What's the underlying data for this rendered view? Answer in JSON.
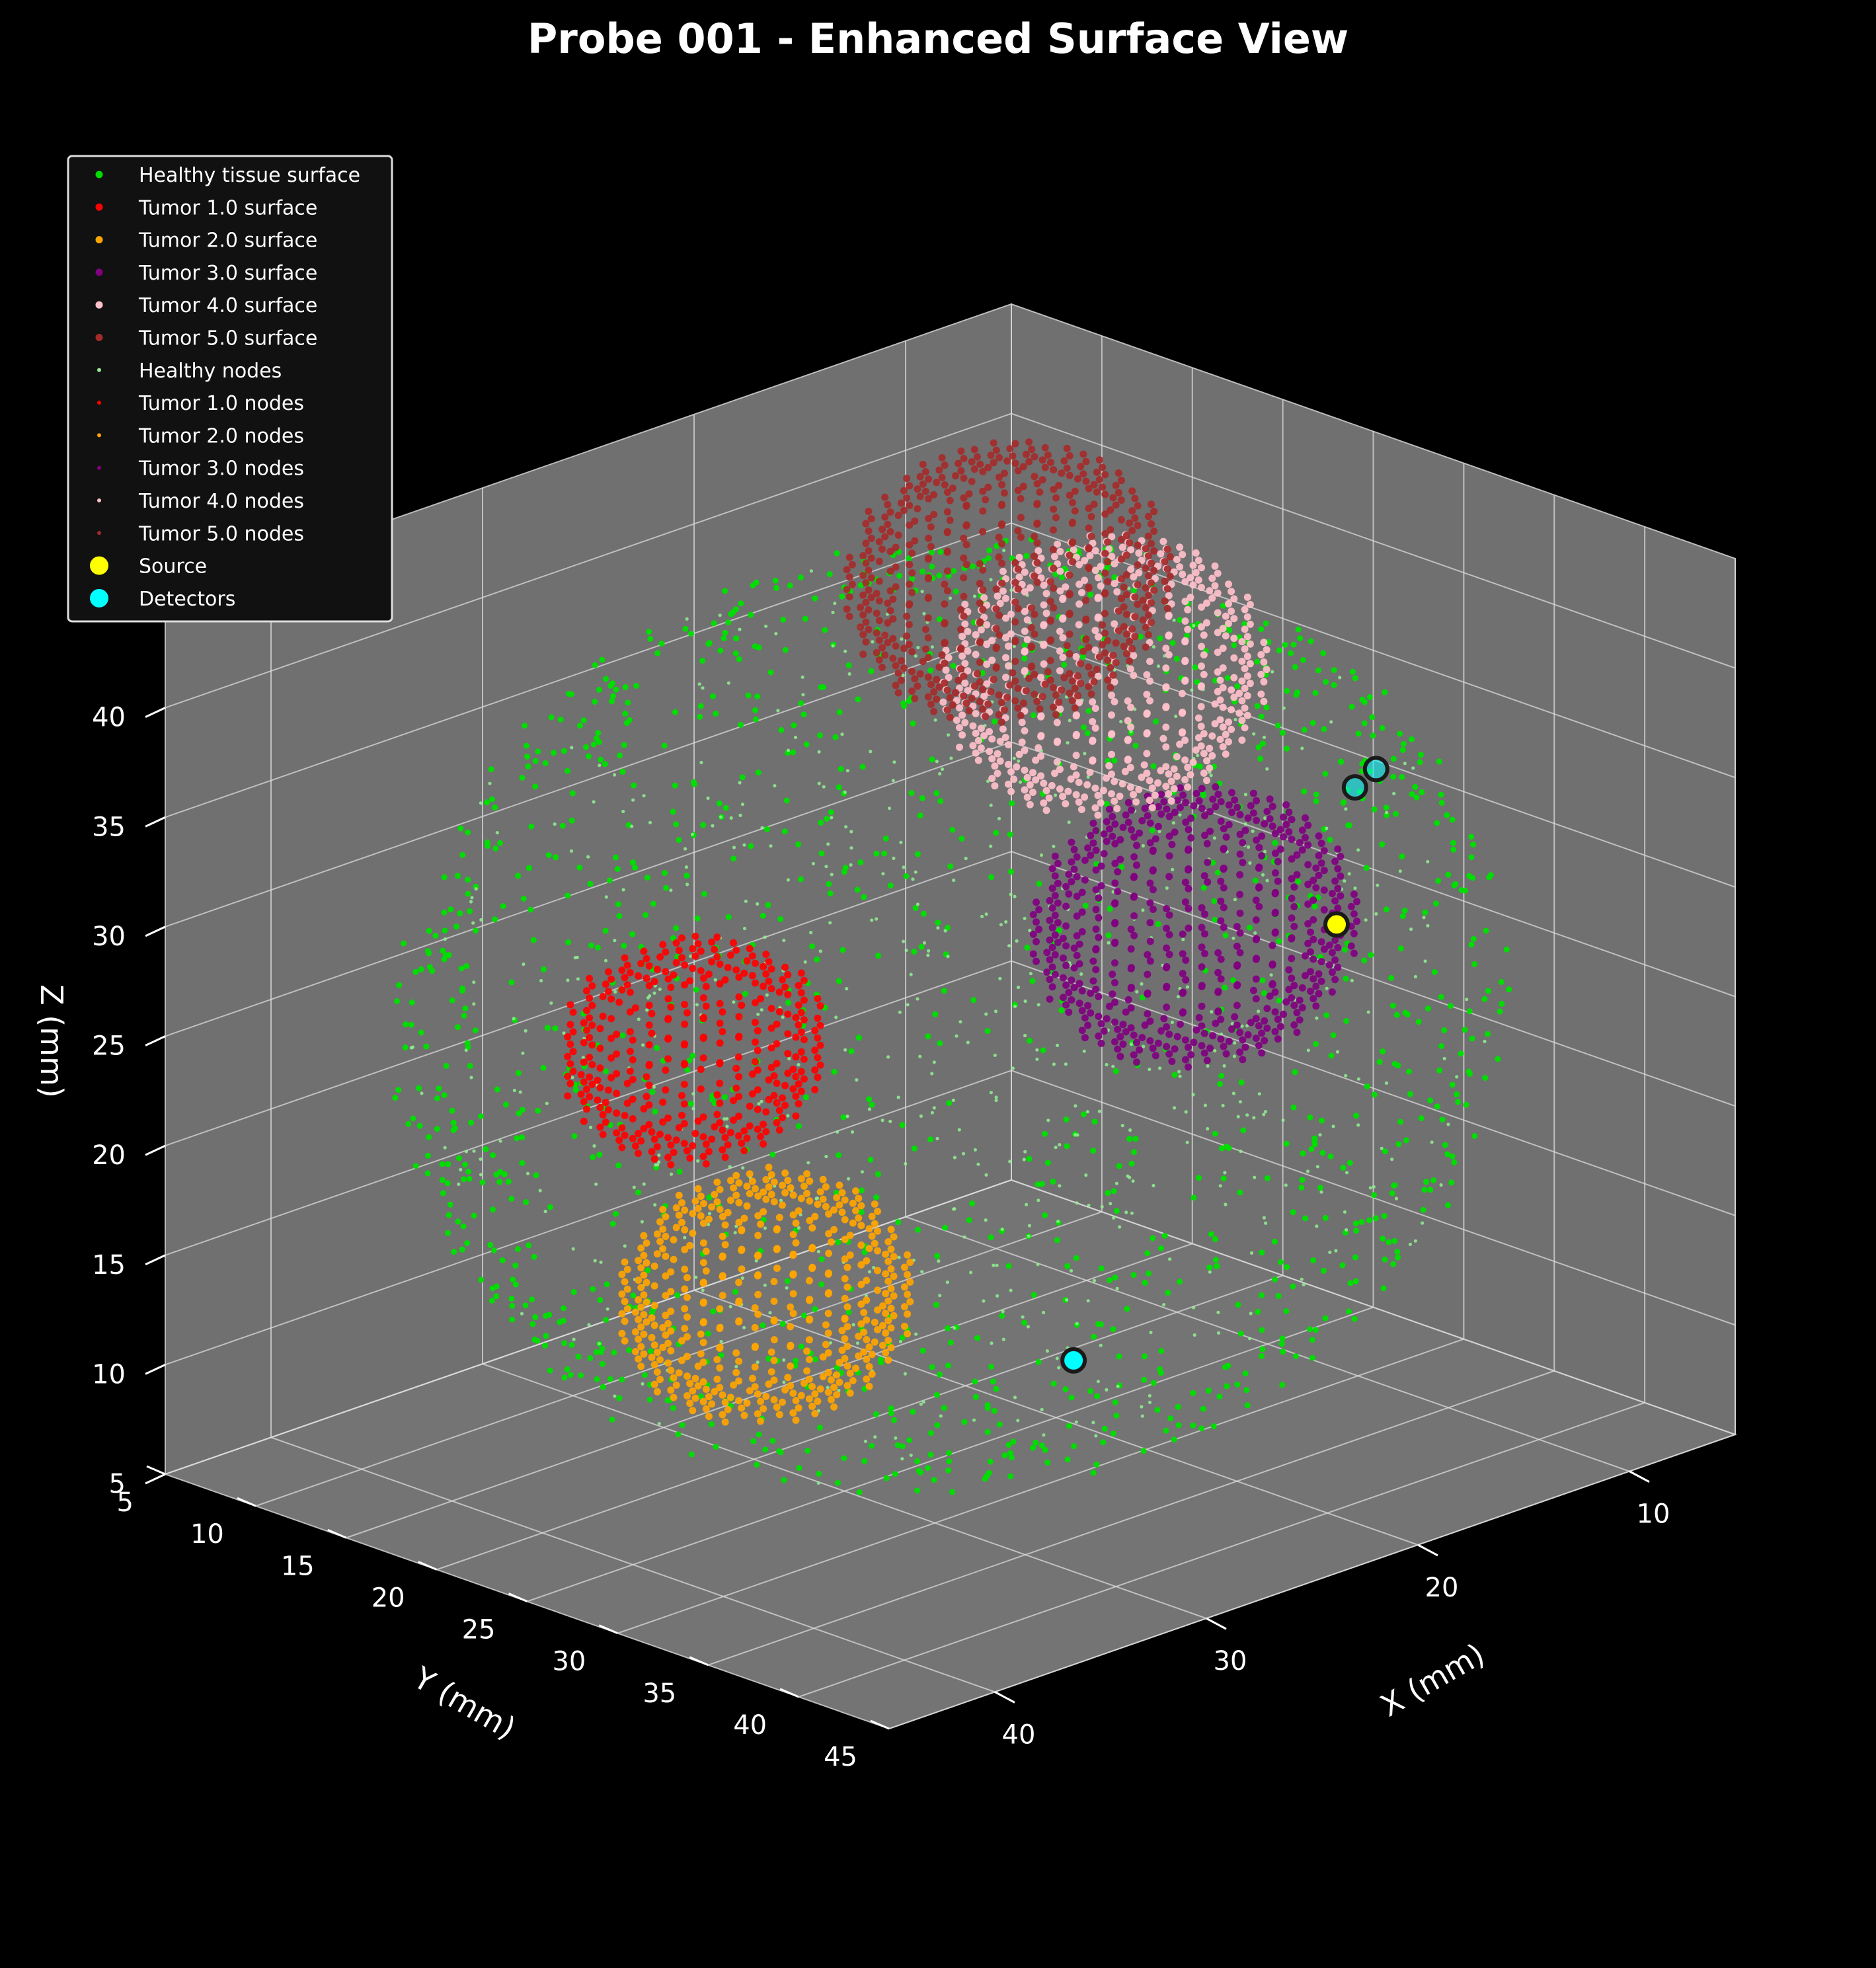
{
  "chart_data": {
    "type": "scatter",
    "dimensions": 3,
    "title": "Probe 001 - Enhanced Surface View",
    "xlabel": "X (mm)",
    "ylabel": "Y (mm)",
    "zlabel": "Z (mm)",
    "xlim": [
      5,
      45
    ],
    "ylim": [
      5,
      45
    ],
    "zlim": [
      5,
      45
    ],
    "x_ticks": [
      "10",
      "20",
      "30",
      "40"
    ],
    "y_ticks": [
      "5",
      "10",
      "15",
      "20",
      "25",
      "30",
      "35",
      "40",
      "45"
    ],
    "z_ticks": [
      "5",
      "10",
      "15",
      "20",
      "25",
      "30",
      "35",
      "40"
    ],
    "grid": true,
    "background": "#000000",
    "pane_color": "#7a7a7a",
    "legend": {
      "placement": "upper-left",
      "entries": [
        {
          "label": "Healthy tissue surface",
          "color": "#00dd00",
          "kind": "surface"
        },
        {
          "label": "Tumor 1.0 surface",
          "color": "#ff0000",
          "kind": "surface"
        },
        {
          "label": "Tumor 2.0 surface",
          "color": "#ffa500",
          "kind": "surface"
        },
        {
          "label": "Tumor 3.0 surface",
          "color": "#800080",
          "kind": "surface"
        },
        {
          "label": "Tumor 4.0 surface",
          "color": "#ffc0cb",
          "kind": "surface"
        },
        {
          "label": "Tumor 5.0 surface",
          "color": "#a52a2a",
          "kind": "surface"
        },
        {
          "label": "Healthy nodes",
          "color": "#90ee90",
          "kind": "nodes"
        },
        {
          "label": "Tumor 1.0 nodes",
          "color": "#ff0000",
          "kind": "nodes"
        },
        {
          "label": "Tumor 2.0 nodes",
          "color": "#ffa500",
          "kind": "nodes"
        },
        {
          "label": "Tumor 3.0 nodes",
          "color": "#800080",
          "kind": "nodes"
        },
        {
          "label": "Tumor 4.0 nodes",
          "color": "#ffc0cb",
          "kind": "nodes"
        },
        {
          "label": "Tumor 5.0 nodes",
          "color": "#a52a2a",
          "kind": "nodes"
        },
        {
          "label": "Source",
          "color": "#ffff00",
          "kind": "marker"
        },
        {
          "label": "Detectors",
          "color": "#00ffff",
          "kind": "marker"
        }
      ]
    },
    "series": [
      {
        "name": "Healthy tissue surface",
        "shape": "sphere-shell",
        "center": [
          25,
          25,
          25
        ],
        "radius": 20,
        "color": "#00dd00"
      },
      {
        "name": "Tumor 1.0 surface",
        "shape": "blob",
        "center": [
          26,
          12,
          20
        ],
        "radius": 5,
        "color": "#ff0000"
      },
      {
        "name": "Tumor 2.0 surface",
        "shape": "blob",
        "center": [
          38,
          30,
          18
        ],
        "radius": 5.5,
        "color": "#ffa500"
      },
      {
        "name": "Tumor 3.0 surface",
        "shape": "blob",
        "center": [
          22,
          35,
          31
        ],
        "radius": 6,
        "color": "#800080"
      },
      {
        "name": "Tumor 4.0 surface",
        "shape": "blob",
        "center": [
          16,
          23,
          37
        ],
        "radius": 6,
        "color": "#ffc0cb"
      },
      {
        "name": "Tumor 5.0 surface",
        "shape": "blob",
        "center": [
          12,
          13,
          37
        ],
        "radius": 6,
        "color": "#a52a2a"
      },
      {
        "name": "Source",
        "points": [
          [
            17,
            37,
            30
          ]
        ],
        "color": "#ffff00"
      },
      {
        "name": "Detectors",
        "points": [
          [
            10,
            31,
            33
          ],
          [
            11,
            31,
            32.5
          ],
          [
            32,
            40,
            16
          ]
        ],
        "color": "#00ffff"
      }
    ]
  }
}
